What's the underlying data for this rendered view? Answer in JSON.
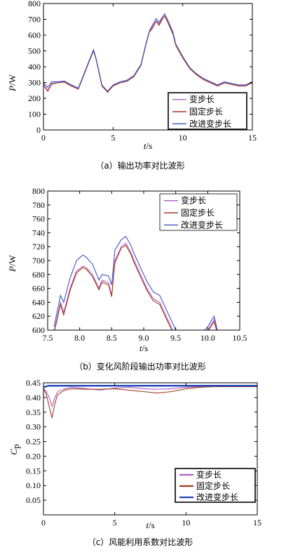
{
  "chart_data": [
    {
      "type": "line",
      "caption": "（a）输出功率对比波形",
      "ylabel_var": "P",
      "ylabel_unit": "/W",
      "xlabel_var": "t",
      "xlabel_unit": "/s",
      "xlim": [
        0,
        15
      ],
      "ylim": [
        0,
        800
      ],
      "xticks": [
        0,
        5,
        10,
        15
      ],
      "yticks": [
        0,
        100,
        200,
        300,
        400,
        500,
        600,
        700,
        800
      ],
      "legend_position": "bottom-right",
      "x": [
        0,
        0.3,
        0.6,
        1,
        1.5,
        2,
        2.5,
        3,
        3.3,
        3.6,
        3.8,
        4.2,
        4.6,
        5,
        5.5,
        6,
        6.5,
        7,
        7.3,
        7.6,
        7.8,
        8.1,
        8.3,
        8.5,
        8.7,
        8.9,
        9.1,
        9.3,
        9.5,
        10,
        10.5,
        11,
        11.5,
        12,
        12.5,
        13,
        13.5,
        14,
        14.5,
        15
      ],
      "series": [
        {
          "name": "变步长",
          "color": "#b05ac8",
          "values": [
            290,
            250,
            295,
            300,
            305,
            280,
            260,
            370,
            440,
            505,
            440,
            280,
            240,
            280,
            300,
            310,
            340,
            410,
            520,
            620,
            650,
            690,
            670,
            700,
            720,
            690,
            650,
            610,
            540,
            460,
            390,
            350,
            320,
            300,
            280,
            300,
            290,
            280,
            280,
            300
          ]
        },
        {
          "name": "固定步长",
          "color": "#a33a1e",
          "values": [
            285,
            245,
            290,
            298,
            302,
            278,
            258,
            368,
            438,
            500,
            438,
            278,
            238,
            278,
            298,
            308,
            338,
            408,
            518,
            618,
            640,
            688,
            662,
            695,
            722,
            686,
            645,
            605,
            535,
            455,
            388,
            348,
            318,
            298,
            278,
            298,
            288,
            278,
            278,
            298
          ]
        },
        {
          "name": "改进变步长",
          "color": "#3f55c4",
          "values": [
            300,
            270,
            305,
            305,
            310,
            285,
            265,
            375,
            445,
            508,
            445,
            285,
            245,
            285,
            305,
            315,
            345,
            415,
            525,
            625,
            660,
            705,
            680,
            710,
            735,
            700,
            660,
            620,
            545,
            465,
            395,
            355,
            325,
            305,
            285,
            305,
            295,
            285,
            285,
            305
          ]
        }
      ]
    },
    {
      "type": "line",
      "caption": "（b）变化风阶段输出功率对比波形",
      "ylabel_var": "P",
      "ylabel_unit": "/W",
      "xlabel_var": "t",
      "xlabel_unit": "/s",
      "xlim": [
        7.5,
        10.5
      ],
      "ylim": [
        600,
        800
      ],
      "xticks": [
        7.5,
        8.0,
        8.5,
        9.0,
        9.5,
        10.0,
        10.5
      ],
      "yticks": [
        600,
        620,
        640,
        660,
        680,
        700,
        720,
        740,
        760,
        780,
        800
      ],
      "legend_position": "top-right",
      "x": [
        7.6,
        7.7,
        7.75,
        7.85,
        7.95,
        8.05,
        8.1,
        8.2,
        8.3,
        8.35,
        8.45,
        8.5,
        8.55,
        8.65,
        8.72,
        8.8,
        8.85,
        8.95,
        9.05,
        9.15,
        9.25,
        9.35,
        9.45,
        9.5,
        9.6,
        9.9,
        10.0,
        10.1,
        10.15,
        10.2
      ],
      "series": [
        {
          "name": "变步长",
          "color": "#b05ac8",
          "values": [
            598,
            640,
            625,
            660,
            685,
            692,
            690,
            680,
            660,
            672,
            668,
            650,
            700,
            720,
            725,
            712,
            700,
            680,
            660,
            645,
            640,
            620,
            600,
            595,
            590,
            590,
            600,
            615,
            598,
            590
          ]
        },
        {
          "name": "固定步长",
          "color": "#a33a1e",
          "values": [
            596,
            637,
            622,
            657,
            682,
            690,
            688,
            677,
            658,
            669,
            665,
            648,
            697,
            718,
            722,
            709,
            697,
            677,
            657,
            642,
            637,
            617,
            598,
            593,
            588,
            588,
            598,
            612,
            596,
            588
          ]
        },
        {
          "name": "改进变步长",
          "color": "#3f55c4",
          "values": [
            605,
            650,
            640,
            675,
            700,
            708,
            705,
            695,
            672,
            680,
            678,
            665,
            715,
            730,
            735,
            722,
            710,
            690,
            670,
            655,
            650,
            630,
            610,
            600,
            592,
            595,
            605,
            620,
            600,
            592
          ]
        }
      ]
    },
    {
      "type": "line",
      "caption": "（c）风能利用系数对比波形",
      "ylabel_var": "C",
      "ylabel_sub": "p",
      "xlabel_var": "t",
      "xlabel_unit": "/s",
      "xlim": [
        0,
        15
      ],
      "ylim": [
        0,
        0.45
      ],
      "xticks": [
        0,
        5,
        10,
        15
      ],
      "yticks": [
        0.05,
        0.1,
        0.15,
        0.2,
        0.25,
        0.3,
        0.35,
        0.4,
        0.45
      ],
      "legend_position": "bottom-right",
      "x": [
        0,
        0.2,
        0.4,
        0.6,
        0.8,
        1.0,
        1.5,
        2,
        3,
        4,
        5,
        6,
        7,
        8,
        9,
        10,
        11,
        12,
        13,
        14,
        15
      ],
      "series": [
        {
          "name": "变步长",
          "color": "#b05ac8",
          "values": [
            0.43,
            0.42,
            0.4,
            0.37,
            0.4,
            0.42,
            0.43,
            0.435,
            0.43,
            0.425,
            0.432,
            0.435,
            0.43,
            0.428,
            0.43,
            0.435,
            0.437,
            0.438,
            0.438,
            0.438,
            0.438
          ]
        },
        {
          "name": "固定步长",
          "color": "#a33a1e",
          "values": [
            0.43,
            0.41,
            0.37,
            0.33,
            0.38,
            0.41,
            0.425,
            0.43,
            0.428,
            0.428,
            0.43,
            0.425,
            0.42,
            0.415,
            0.42,
            0.43,
            0.435,
            0.437,
            0.437,
            0.437,
            0.437
          ]
        },
        {
          "name": "改进变步长",
          "color": "#1c44b8",
          "values": [
            0.435,
            0.438,
            0.44,
            0.44,
            0.44,
            0.44,
            0.44,
            0.44,
            0.44,
            0.44,
            0.44,
            0.44,
            0.44,
            0.44,
            0.44,
            0.44,
            0.44,
            0.44,
            0.44,
            0.44,
            0.44
          ]
        }
      ]
    }
  ]
}
